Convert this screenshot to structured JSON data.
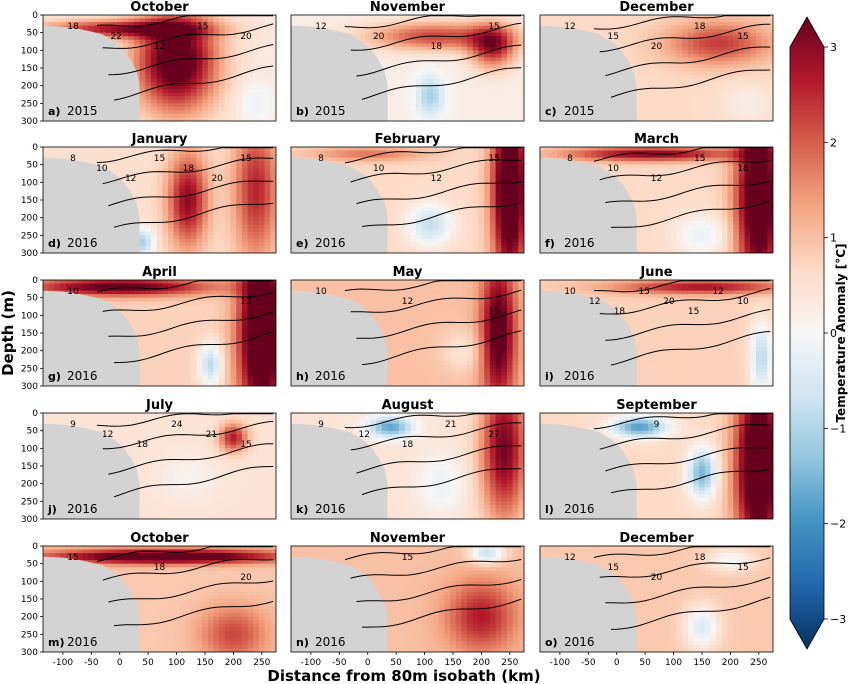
{
  "chart_data": {
    "type": "heatmap",
    "shared_xlabel": "Distance from 80m isobath (km)",
    "shared_ylabel": "Depth (m)",
    "x_ticks": [
      -100,
      -50,
      0,
      50,
      100,
      150,
      200,
      250
    ],
    "xlim": [
      -135,
      275
    ],
    "y_ticks": [
      0,
      50,
      100,
      150,
      200,
      250,
      300
    ],
    "ylim": [
      300,
      0
    ],
    "colorbar": {
      "label": "Temperature Anomaly [°C]",
      "range": [
        -3,
        3
      ],
      "ticks": [
        -3,
        -2,
        -1,
        0,
        1,
        2,
        3
      ],
      "colormap": "RdBu_r",
      "extend": "both"
    },
    "land_color": "#d3d3d3",
    "panels": [
      {
        "letter": "a)",
        "title": "October",
        "year": "2015",
        "contour_labels": [
          "18",
          "22",
          "12",
          "15",
          "20"
        ],
        "anomaly": "strong warm above 150 m near shelf"
      },
      {
        "letter": "b)",
        "title": "November",
        "year": "2015",
        "contour_labels": [
          "12",
          "20",
          "18",
          "15"
        ],
        "anomaly": "warm upper layer, cool core at depth"
      },
      {
        "letter": "c)",
        "title": "December",
        "year": "2015",
        "contour_labels": [
          "12",
          "15",
          "20",
          "18",
          "15"
        ],
        "anomaly": "moderate warm"
      },
      {
        "letter": "d)",
        "title": "January",
        "year": "2016",
        "contour_labels": [
          "8",
          "10",
          "12",
          "15",
          "18",
          "20",
          "15"
        ],
        "anomaly": "warm with cool patches"
      },
      {
        "letter": "e)",
        "title": "February",
        "year": "2016",
        "contour_labels": [
          "8",
          "10",
          "12",
          "15"
        ],
        "anomaly": "warm, cool core at 200 m"
      },
      {
        "letter": "f)",
        "title": "March",
        "year": "2016",
        "contour_labels": [
          "8",
          "10",
          "12",
          "15",
          "18"
        ],
        "anomaly": "strong warm near slope"
      },
      {
        "letter": "g)",
        "title": "April",
        "year": "2016",
        "contour_labels": [
          "10",
          "12"
        ],
        "anomaly": "strong warm offshore"
      },
      {
        "letter": "h)",
        "title": "May",
        "year": "2016",
        "contour_labels": [
          "10",
          "12",
          "15"
        ],
        "anomaly": "moderate warm"
      },
      {
        "letter": "i)",
        "title": "June",
        "year": "2016",
        "contour_labels": [
          "10",
          "12",
          "18",
          "15",
          "20",
          "15",
          "12",
          "10"
        ],
        "anomaly": "warm surface, cool offshore deep"
      },
      {
        "letter": "j)",
        "title": "July",
        "year": "2016",
        "contour_labels": [
          "9",
          "12",
          "18",
          "24",
          "21",
          "15"
        ],
        "anomaly": "weak warm"
      },
      {
        "letter": "k)",
        "title": "August",
        "year": "2016",
        "contour_labels": [
          "9",
          "12",
          "18",
          "21",
          "27"
        ],
        "anomaly": "cool surface near shelf, warm offshore"
      },
      {
        "letter": "l)",
        "title": "September",
        "year": "2016",
        "contour_labels": [
          "9"
        ],
        "anomaly": "cool surface shelf, strong warm offshore"
      },
      {
        "letter": "m)",
        "title": "October",
        "year": "2016",
        "contour_labels": [
          "15",
          "18",
          "20"
        ],
        "anomaly": "strong warm surface"
      },
      {
        "letter": "n)",
        "title": "November",
        "year": "2016",
        "contour_labels": [
          "15"
        ],
        "anomaly": "warm"
      },
      {
        "letter": "o)",
        "title": "December",
        "year": "2016",
        "contour_labels": [
          "12",
          "15",
          "20",
          "18",
          "15"
        ],
        "anomaly": "moderate warm"
      }
    ]
  }
}
